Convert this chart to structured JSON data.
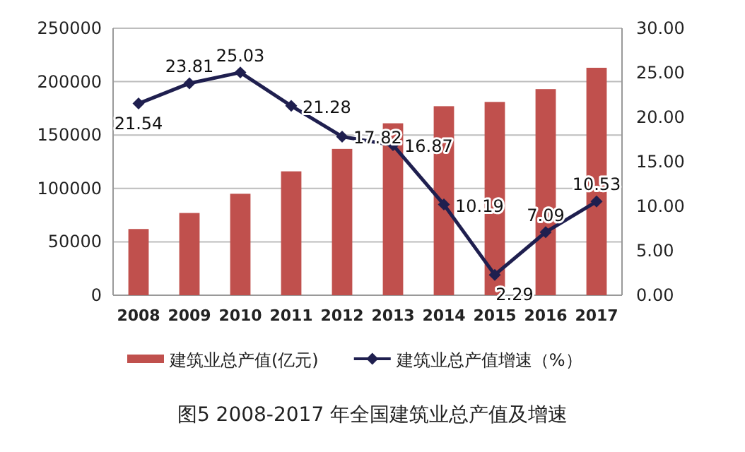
{
  "chart_data": {
    "type": "bar",
    "title": "图5   2008-2017 年全国建筑业总产值及增速",
    "categories": [
      "2008",
      "2009",
      "2010",
      "2011",
      "2012",
      "2013",
      "2014",
      "2015",
      "2016",
      "2017"
    ],
    "series": [
      {
        "name": "建筑业总产值(亿元)",
        "color": "#c0504d",
        "values": [
          62000,
          77000,
          95000,
          116000,
          137000,
          161000,
          177000,
          181000,
          193000,
          213000
        ]
      },
      {
        "name": "建筑业总产值增速（%）",
        "type": "line",
        "axis": "y2",
        "color": "#1f1f4f",
        "marker": "diamond",
        "values": [
          21.54,
          23.81,
          25.03,
          21.28,
          17.82,
          16.87,
          10.19,
          2.29,
          7.09,
          10.53
        ],
        "value_labels": [
          "21.54",
          "23.81",
          "25.03",
          "21.28",
          "17.82",
          "16.87",
          "10.19",
          "2.29",
          "7.09",
          "10.53"
        ]
      }
    ],
    "ylim": [
      0,
      250000
    ],
    "yticks": [
      0,
      50000,
      100000,
      150000,
      200000,
      250000
    ],
    "y2lim": [
      0,
      30
    ],
    "y2ticks": [
      {
        "value": 0,
        "label": "0.00"
      },
      {
        "value": 5,
        "label": "5.00"
      },
      {
        "value": 10,
        "label": "10.00"
      },
      {
        "value": 15,
        "label": "15.00"
      },
      {
        "value": 20,
        "label": "20.00"
      },
      {
        "value": 25,
        "label": "25.00"
      },
      {
        "value": 30,
        "label": "30.00"
      }
    ],
    "grid": "y",
    "legend": "bottom"
  }
}
